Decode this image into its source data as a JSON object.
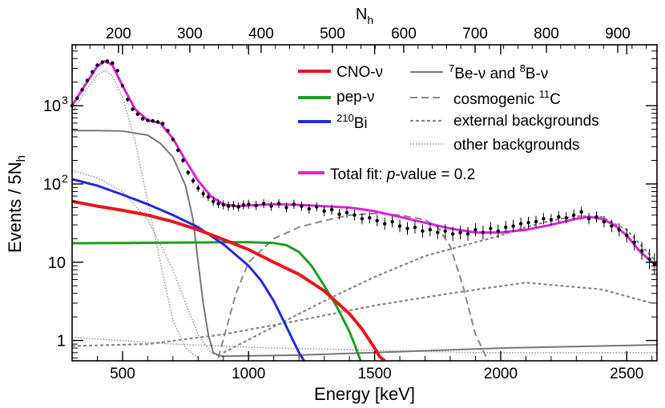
{
  "chart_data": {
    "type": "line",
    "title": "",
    "xlabel": "Energy [keV]",
    "ylabel": "Events / 5N",
    "ylabel_sub": "h",
    "top_axis_label": "N",
    "top_axis_label_sub": "h",
    "xlim": [
      300,
      2620
    ],
    "ylim": [
      0.55,
      6000
    ],
    "yscale": "log",
    "x_ticks": [
      "500",
      "1000",
      "1500",
      "2000",
      "2500"
    ],
    "x_tick_values": [
      500,
      1000,
      1500,
      2000,
      2500
    ],
    "top_ticks": [
      "200",
      "300",
      "400",
      "500",
      "600",
      "700",
      "800",
      "900"
    ],
    "top_tick_values": [
      200,
      300,
      400,
      500,
      600,
      700,
      800,
      900
    ],
    "top_axis_range": [
      135,
      955
    ],
    "y_ticks": [
      "1",
      "10",
      "10",
      "10"
    ],
    "y_tick_exps": [
      "",
      "",
      "2",
      "3"
    ],
    "y_tick_values": [
      1,
      10,
      100,
      1000
    ],
    "legend": {
      "left": [
        {
          "label": "CNO-ν",
          "sup": "",
          "color": "#e8161c",
          "style": "solid"
        },
        {
          "label": "pep-ν",
          "sup": "",
          "color": "#1f9e1f",
          "style": "solid"
        },
        {
          "label": "Bi",
          "sup": "210",
          "color": "#1d2ddb",
          "style": "solid"
        }
      ],
      "right": [
        {
          "label": "Be-ν and ",
          "sup": "7",
          "label2": "B-ν",
          "sup2": "8",
          "color": "#777777",
          "style": "solid"
        },
        {
          "label": "cosmogenic ",
          "label2": "C",
          "sup2": "11",
          "color": "#888888",
          "style": "dashed"
        },
        {
          "label": "external backgrounds",
          "color": "#888888",
          "style": "dotted"
        },
        {
          "label": "other backgrounds",
          "color": "#888888",
          "style": "fine-dotted"
        }
      ],
      "total": {
        "label": "Total fit: ",
        "italic": "p",
        "label2": "-value = 0.2",
        "color": "#e020e0"
      }
    },
    "series": [
      {
        "name": "CNO-ν",
        "color": "#e8161c",
        "x": [
          300,
          400,
          500,
          600,
          700,
          800,
          900,
          1000,
          1100,
          1200,
          1300,
          1400,
          1450,
          1500,
          1520,
          1540
        ],
        "y": [
          60,
          52,
          46,
          40,
          33,
          26,
          19.5,
          14.5,
          10,
          7,
          4.3,
          2.2,
          1.4,
          0.8,
          0.62,
          0.55
        ]
      },
      {
        "name": "pep-ν",
        "color": "#1f9e1f",
        "x": [
          300,
          500,
          700,
          900,
          1000,
          1100,
          1150,
          1200,
          1250,
          1300,
          1350,
          1400,
          1420,
          1440,
          1445
        ],
        "y": [
          17.5,
          17.6,
          17.8,
          18,
          18,
          17.6,
          16.5,
          13.5,
          9,
          5,
          2.7,
          1.3,
          0.9,
          0.6,
          0.55
        ]
      },
      {
        "name": "210Bi",
        "color": "#1d2ddb",
        "x": [
          300,
          400,
          500,
          600,
          700,
          800,
          900,
          1000,
          1050,
          1100,
          1150,
          1200,
          1220
        ],
        "y": [
          115,
          95,
          73,
          55,
          40,
          28,
          17,
          9,
          5.8,
          3.2,
          1.5,
          0.7,
          0.55
        ]
      },
      {
        "name": "7Be-ν and 8B-ν",
        "color": "#777777",
        "x": [
          300,
          400,
          500,
          600,
          650,
          700,
          750,
          780,
          800,
          820,
          840,
          860,
          880,
          900,
          1200,
          1600,
          2000,
          2400,
          2620
        ],
        "y": [
          480,
          480,
          475,
          420,
          330,
          220,
          95,
          35,
          10,
          3,
          1.2,
          0.7,
          0.65,
          0.63,
          0.65,
          0.72,
          0.8,
          0.85,
          0.88
        ]
      },
      {
        "name": "cosmogenic 11C",
        "color": "#888888",
        "x": [
          880,
          950,
          1000,
          1100,
          1200,
          1300,
          1400,
          1500,
          1600,
          1700,
          1750,
          1800,
          1850,
          1900,
          1950
        ],
        "y": [
          0.6,
          4,
          10,
          20,
          28,
          34,
          40,
          42,
          40,
          35,
          28,
          16,
          5,
          1.2,
          0.55
        ]
      },
      {
        "name": "external backgrounds (a)",
        "color": "#888888",
        "x": [
          900,
          1100,
          1300,
          1500,
          1700,
          1900,
          2000,
          2100,
          2200,
          2300,
          2400,
          2500,
          2560,
          2620
        ],
        "y": [
          0.7,
          1.5,
          3.2,
          6.5,
          12,
          18,
          22,
          28,
          34,
          39,
          38,
          26,
          16,
          10
        ]
      },
      {
        "name": "external backgrounds (b)",
        "color": "#888888",
        "x": [
          300,
          600,
          900,
          1200,
          1500,
          1800,
          2100,
          2400,
          2600
        ],
        "y": [
          0.85,
          0.9,
          1.2,
          1.8,
          2.8,
          4,
          5.5,
          4.5,
          3
        ]
      },
      {
        "name": "other backgrounds (a)",
        "color": "#999999",
        "x": [
          300,
          350,
          400,
          430,
          460,
          500,
          550,
          600,
          650,
          700,
          750,
          800
        ],
        "y": [
          800,
          1500,
          2500,
          2800,
          2400,
          1300,
          350,
          60,
          10,
          1.8,
          0.8,
          0.6
        ]
      },
      {
        "name": "other backgrounds (b)",
        "color": "#999999",
        "x": [
          300,
          400,
          500,
          600,
          700,
          750,
          800,
          850,
          900
        ],
        "y": [
          150,
          120,
          80,
          35,
          8,
          3,
          1.2,
          0.7,
          0.6
        ]
      },
      {
        "name": "other backgrounds (c)",
        "color": "#999999",
        "x": [
          300,
          700,
          1100,
          1500,
          1900,
          2300,
          2620
        ],
        "y": [
          1.1,
          0.9,
          0.8,
          0.75,
          0.7,
          0.7,
          0.7
        ]
      },
      {
        "name": "Total fit",
        "color": "#e020e0",
        "x": [
          300,
          350,
          400,
          430,
          460,
          500,
          550,
          600,
          650,
          700,
          750,
          800,
          850,
          900,
          950,
          1000,
          1100,
          1200,
          1300,
          1400,
          1500,
          1600,
          1700,
          1800,
          1900,
          2000,
          2100,
          2200,
          2300,
          2350,
          2400,
          2450,
          2500,
          2550,
          2600,
          2620
        ],
        "y": [
          1000,
          1800,
          3200,
          3700,
          3300,
          1800,
          900,
          650,
          600,
          380,
          200,
          110,
          70,
          55,
          52,
          53,
          55,
          54,
          52,
          50,
          45,
          38,
          32,
          27,
          24,
          24,
          26,
          30,
          36,
          38,
          36,
          30,
          22,
          14,
          10,
          9.5
        ]
      }
    ],
    "data_points": {
      "x": [
        300,
        320,
        340,
        360,
        380,
        400,
        420,
        440,
        460,
        480,
        500,
        520,
        540,
        560,
        580,
        600,
        620,
        640,
        660,
        680,
        700,
        720,
        740,
        760,
        780,
        800,
        820,
        840,
        860,
        880,
        900,
        920,
        940,
        960,
        980,
        1000,
        1030,
        1060,
        1090,
        1120,
        1150,
        1180,
        1210,
        1240,
        1270,
        1300,
        1330,
        1360,
        1390,
        1420,
        1450,
        1480,
        1510,
        1540,
        1570,
        1600,
        1630,
        1660,
        1690,
        1720,
        1750,
        1780,
        1810,
        1840,
        1870,
        1900,
        1930,
        1960,
        1990,
        2020,
        2050,
        2080,
        2110,
        2140,
        2170,
        2200,
        2230,
        2260,
        2290,
        2320,
        2350,
        2380,
        2410,
        2440,
        2470,
        2500,
        2530,
        2560,
        2590,
        2610
      ],
      "y": [
        1000,
        1250,
        1600,
        2100,
        2700,
        3300,
        3600,
        3700,
        3500,
        2800,
        1800,
        1200,
        900,
        780,
        680,
        650,
        640,
        620,
        590,
        480,
        370,
        270,
        200,
        140,
        110,
        88,
        75,
        68,
        60,
        56,
        54,
        52,
        53,
        51,
        54,
        55,
        53,
        56,
        52,
        56,
        50,
        55,
        52,
        48,
        51,
        45,
        47,
        41,
        43,
        40,
        36,
        37,
        34,
        31,
        33,
        29,
        27,
        28,
        25,
        26,
        24,
        25,
        23,
        24,
        23,
        26,
        24,
        27,
        25,
        28,
        29,
        31,
        32,
        33,
        36,
        35,
        38,
        37,
        40,
        44,
        36,
        38,
        33,
        29,
        26,
        22,
        18,
        14,
        11,
        9.5
      ]
    }
  }
}
